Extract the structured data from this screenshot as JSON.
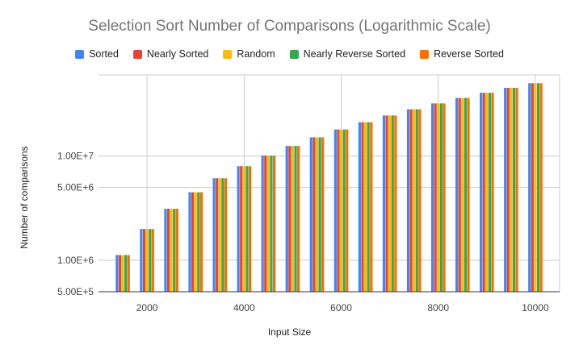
{
  "chart_data": {
    "type": "bar",
    "title": "Selection Sort Number of Comparisons (Logarithmic Scale)",
    "xlabel": "Input Size",
    "ylabel": "Number of comparisons",
    "y_scale": "log",
    "ylim": [
      500000,
      60000000
    ],
    "xlim": [
      1000,
      10500
    ],
    "x_ticks": [
      2000,
      4000,
      6000,
      8000,
      10000
    ],
    "y_ticks": [
      {
        "value": 500000,
        "label": "5.00E+5"
      },
      {
        "value": 1000000,
        "label": "1.00E+6"
      },
      {
        "value": 5000000,
        "label": "5.00E+6"
      },
      {
        "value": 10000000,
        "label": "1.00E+7"
      }
    ],
    "grid": true,
    "legend_position": "top",
    "x": [
      1500,
      2000,
      2500,
      3000,
      3500,
      4000,
      4500,
      5000,
      5500,
      6000,
      6500,
      7000,
      7500,
      8000,
      8500,
      9000,
      9500,
      10000
    ],
    "series": [
      {
        "name": "Sorted",
        "color": "#4285F4",
        "values": [
          1124250,
          1999000,
          3123750,
          4498500,
          6123250,
          7998000,
          10122750,
          12497500,
          15122250,
          17997000,
          21121750,
          24496500,
          28121250,
          31996000,
          36120750,
          40495500,
          45120250,
          49995000
        ]
      },
      {
        "name": "Nearly Sorted",
        "color": "#EA4335",
        "values": [
          1124250,
          1999000,
          3123750,
          4498500,
          6123250,
          7998000,
          10122750,
          12497500,
          15122250,
          17997000,
          21121750,
          24496500,
          28121250,
          31996000,
          36120750,
          40495500,
          45120250,
          49995000
        ]
      },
      {
        "name": "Random",
        "color": "#FBBC04",
        "values": [
          1124250,
          1999000,
          3123750,
          4498500,
          6123250,
          7998000,
          10122750,
          12497500,
          15122250,
          17997000,
          21121750,
          24496500,
          28121250,
          31996000,
          36120750,
          40495500,
          45120250,
          49995000
        ]
      },
      {
        "name": "Nearly Reverse Sorted",
        "color": "#34A853",
        "values": [
          1124250,
          1999000,
          3123750,
          4498500,
          6123250,
          7998000,
          10122750,
          12497500,
          15122250,
          17997000,
          21121750,
          24496500,
          28121250,
          31996000,
          36120750,
          40495500,
          45120250,
          49995000
        ]
      },
      {
        "name": "Reverse Sorted",
        "color": "#FF6D01",
        "values": [
          1124250,
          1999000,
          3123750,
          4498500,
          6123250,
          7998000,
          10122750,
          12497500,
          15122250,
          17997000,
          21121750,
          24496500,
          28121250,
          31996000,
          36120750,
          40495500,
          45120250,
          49995000
        ]
      }
    ]
  }
}
